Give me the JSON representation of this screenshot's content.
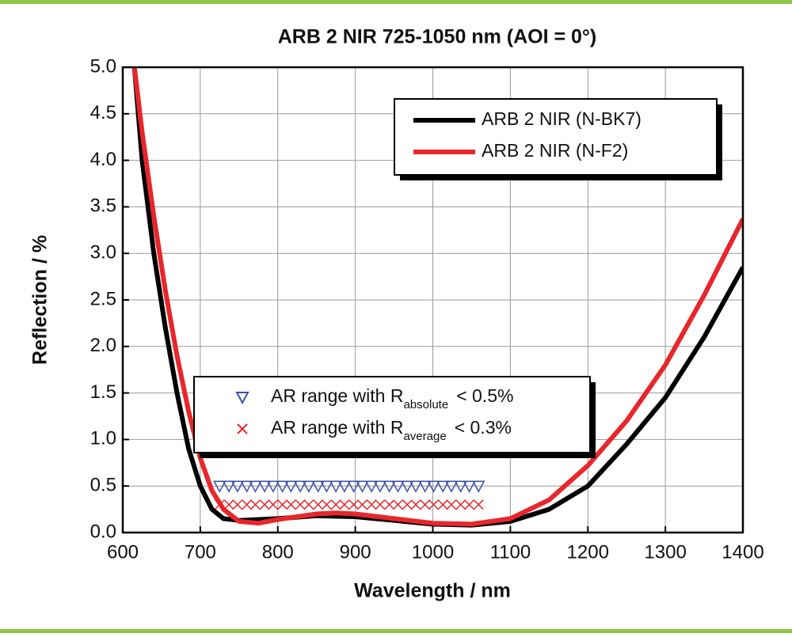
{
  "chart_data": {
    "type": "line",
    "title": "ARB 2 NIR 725-1050 nm (AOI = 0°)",
    "x_label": "Wavelength / nm",
    "y_label": "Reflection / %",
    "xlim": [
      600,
      1400
    ],
    "ylim": [
      0,
      5
    ],
    "xticks": [
      600,
      700,
      800,
      900,
      1000,
      1100,
      1200,
      1300,
      1400
    ],
    "yticks": [
      {
        "value": 0,
        "label": "0.0"
      },
      0.5,
      {
        "value": 1,
        "label": "1.0"
      },
      1.5,
      {
        "value": 2,
        "label": "2.0"
      },
      2.5,
      {
        "value": 3,
        "label": "3.0"
      },
      3.5,
      {
        "value": 4,
        "label": "4.0"
      },
      4.5,
      {
        "value": 5,
        "label": "5.0"
      }
    ],
    "grid": true,
    "series": [
      {
        "name": "ARB 2 NIR (N-BK7)",
        "color": "#000000",
        "marker": "line",
        "x": [
          615,
          625,
          640,
          655,
          670,
          685,
          700,
          715,
          730,
          750,
          800,
          850,
          900,
          950,
          1000,
          1050,
          1100,
          1150,
          1200,
          1250,
          1300,
          1350,
          1400
        ],
        "values": [
          5.0,
          4.0,
          3.0,
          2.2,
          1.5,
          0.9,
          0.5,
          0.25,
          0.15,
          0.13,
          0.15,
          0.18,
          0.17,
          0.13,
          0.09,
          0.08,
          0.12,
          0.25,
          0.5,
          0.95,
          1.45,
          2.1,
          2.85
        ]
      },
      {
        "name": "ARB 2 NIR (N-F2)",
        "color": "#e8262b",
        "marker": "line",
        "x": [
          615,
          625,
          640,
          655,
          670,
          685,
          700,
          715,
          730,
          750,
          775,
          800,
          850,
          875,
          900,
          950,
          1000,
          1050,
          1100,
          1150,
          1200,
          1250,
          1300,
          1350,
          1400
        ],
        "values": [
          5.0,
          4.3,
          3.4,
          2.6,
          1.9,
          1.3,
          0.8,
          0.45,
          0.25,
          0.12,
          0.1,
          0.14,
          0.2,
          0.21,
          0.2,
          0.15,
          0.1,
          0.09,
          0.15,
          0.35,
          0.72,
          1.2,
          1.8,
          2.55,
          3.37
        ]
      },
      {
        "name": "AR range with R",
        "name_subscript": "absolute",
        "name_suffix": "< 0.5%",
        "color": "#3b4fa8",
        "marker": "triangle",
        "x": [
          725,
          737,
          748,
          760,
          771,
          783,
          794,
          806,
          817,
          829,
          840,
          852,
          863,
          875,
          886,
          898,
          909,
          921,
          932,
          944,
          955,
          967,
          978,
          990,
          1001,
          1013,
          1024,
          1036,
          1047,
          1059
        ],
        "values": [
          0.5,
          0.5,
          0.5,
          0.5,
          0.5,
          0.5,
          0.5,
          0.5,
          0.5,
          0.5,
          0.5,
          0.5,
          0.5,
          0.5,
          0.5,
          0.5,
          0.5,
          0.5,
          0.5,
          0.5,
          0.5,
          0.5,
          0.5,
          0.5,
          0.5,
          0.5,
          0.5,
          0.5,
          0.5,
          0.5
        ]
      },
      {
        "name": "AR range with R",
        "name_subscript": "average",
        "name_suffix": "< 0.3%",
        "color": "#e8262b",
        "marker": "cross",
        "x": [
          725,
          737,
          748,
          760,
          771,
          783,
          794,
          806,
          817,
          829,
          840,
          852,
          863,
          875,
          886,
          898,
          909,
          921,
          932,
          944,
          955,
          967,
          978,
          990,
          1001,
          1013,
          1024,
          1036,
          1047,
          1059
        ],
        "values": [
          0.3,
          0.3,
          0.3,
          0.3,
          0.3,
          0.3,
          0.3,
          0.3,
          0.3,
          0.3,
          0.3,
          0.3,
          0.3,
          0.3,
          0.3,
          0.3,
          0.3,
          0.3,
          0.3,
          0.3,
          0.3,
          0.3,
          0.3,
          0.3,
          0.3,
          0.3,
          0.3,
          0.3,
          0.3,
          0.3
        ]
      }
    ]
  }
}
